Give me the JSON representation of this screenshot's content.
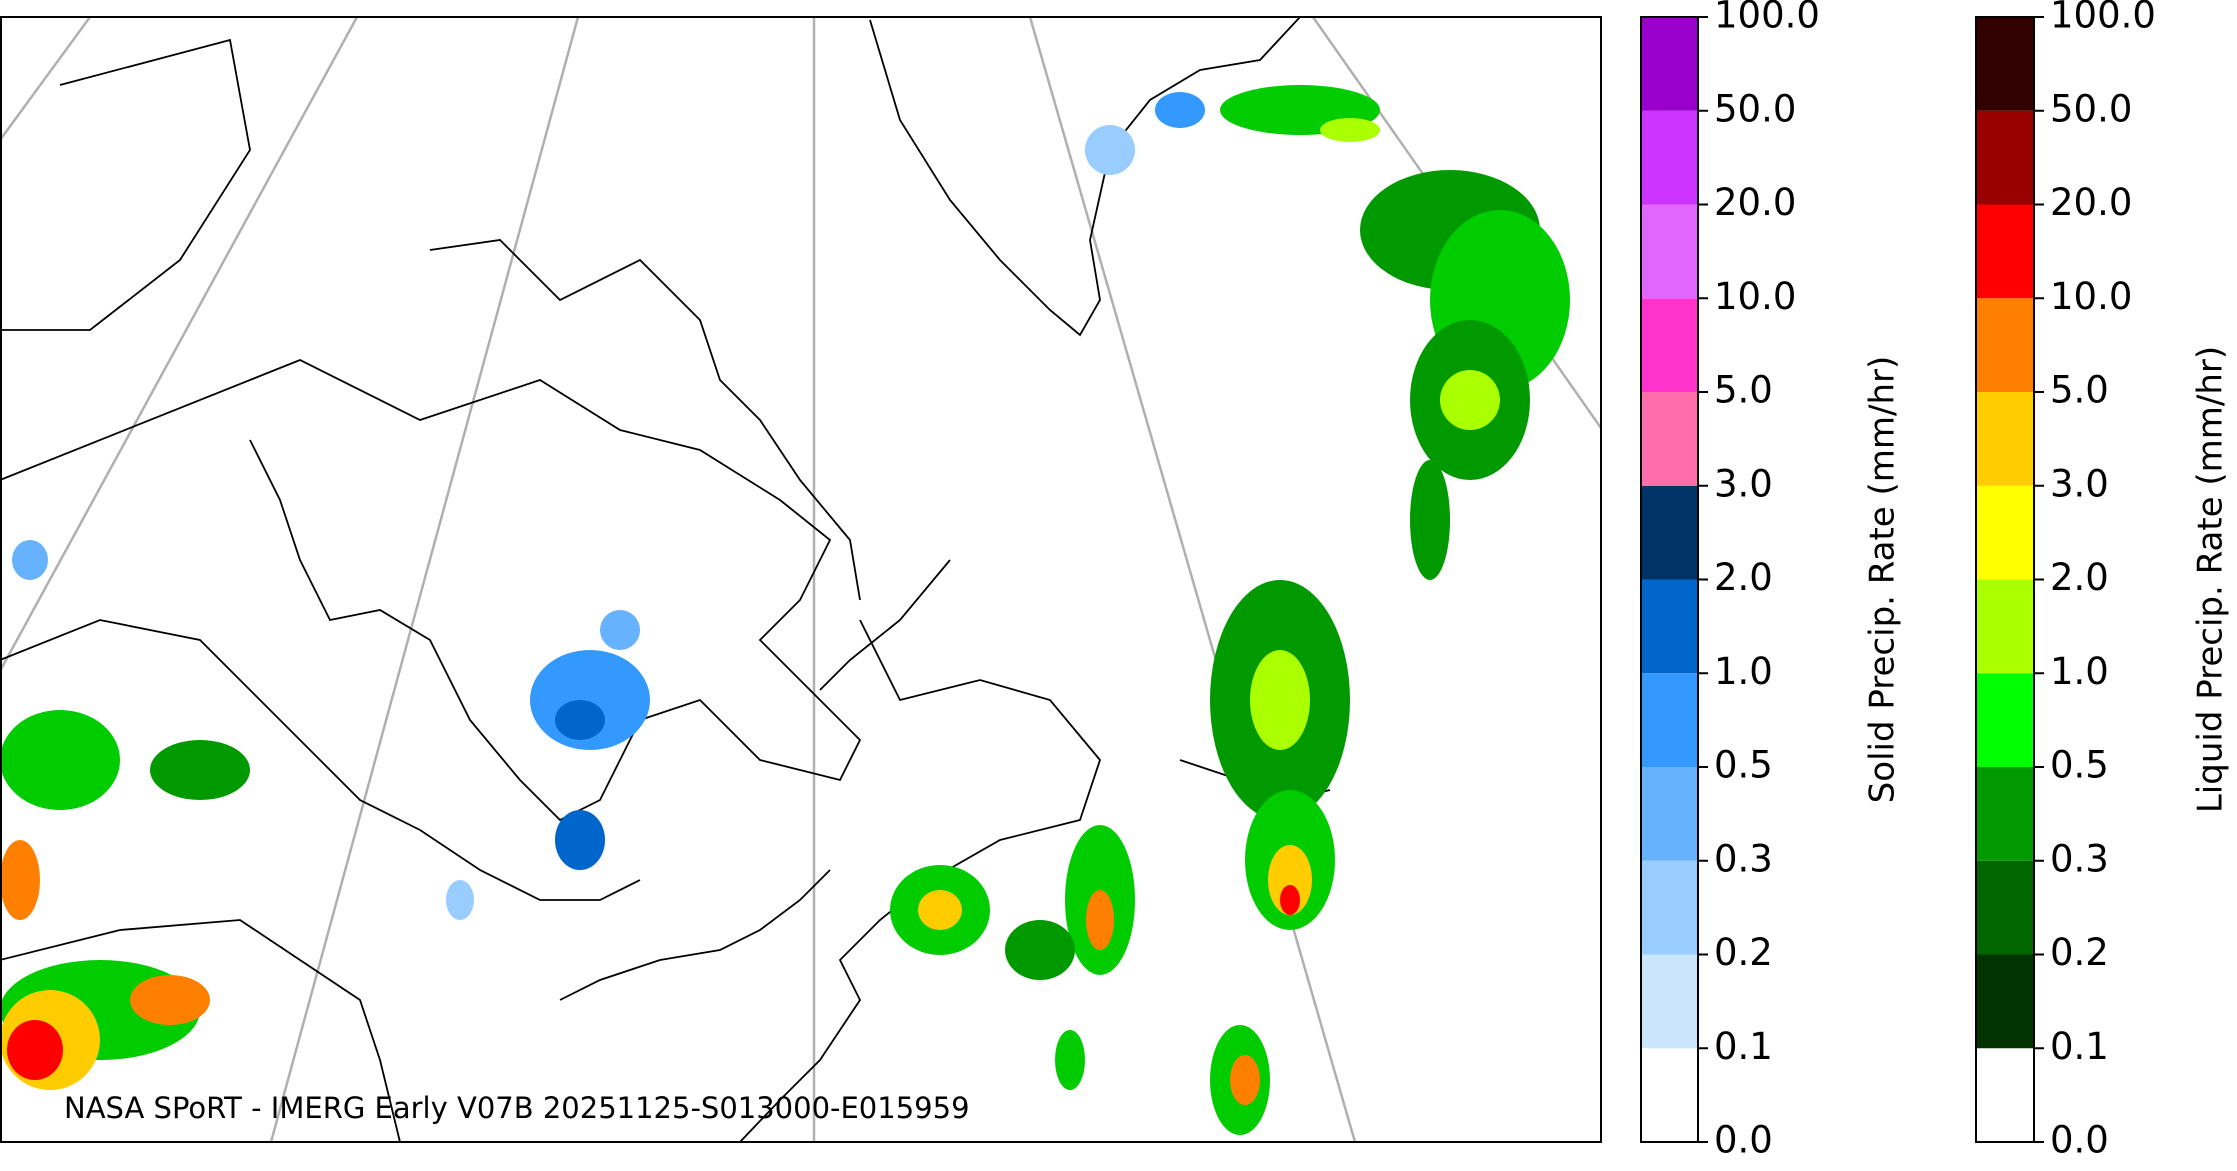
{
  "caption": "NASA SPoRT - IMERG Early V07B 20251125-S013000-E015959",
  "colorbars": [
    {
      "label": "Solid Precip. Rate (mm/hr)",
      "ticks": [
        {
          "value": 0,
          "label": "0.0"
        },
        0.1,
        0.2,
        0.3,
        0.5,
        {
          "value": 1,
          "label": "1.0"
        },
        {
          "value": 2,
          "label": "2.0"
        },
        {
          "value": 3,
          "label": "3.0"
        },
        {
          "value": 5,
          "label": "5.0"
        },
        {
          "value": 10,
          "label": "10.0"
        },
        {
          "value": 20,
          "label": "20.0"
        },
        {
          "value": 50,
          "label": "50.0"
        },
        {
          "value": 100,
          "label": "100.0"
        }
      ],
      "colors": [
        "#ffffff",
        "#cce5ff",
        "#99ccff",
        "#66b2ff",
        "#3399ff",
        "#0066cc",
        "#003366",
        "#ff6eaa",
        "#ff33cc",
        "#e066ff",
        "#cc33ff",
        "#9900cc"
      ]
    },
    {
      "label": "Liquid Precip. Rate (mm/hr)",
      "ticks": [
        {
          "value": 0,
          "label": "0.0"
        },
        0.1,
        0.2,
        0.3,
        0.5,
        {
          "value": 1,
          "label": "1.0"
        },
        {
          "value": 2,
          "label": "2.0"
        },
        {
          "value": 3,
          "label": "3.0"
        },
        {
          "value": 5,
          "label": "5.0"
        },
        {
          "value": 10,
          "label": "10.0"
        },
        {
          "value": 20,
          "label": "20.0"
        },
        {
          "value": 50,
          "label": "50.0"
        },
        {
          "value": 100,
          "label": "100.0"
        }
      ],
      "colors": [
        "#ffffff",
        "#003300",
        "#006600",
        "#009900",
        "#00ff00",
        "#aaff00",
        "#ffff00",
        "#ffcc00",
        "#ff8000",
        "#ff0000",
        "#990000",
        "#330000"
      ]
    }
  ]
}
